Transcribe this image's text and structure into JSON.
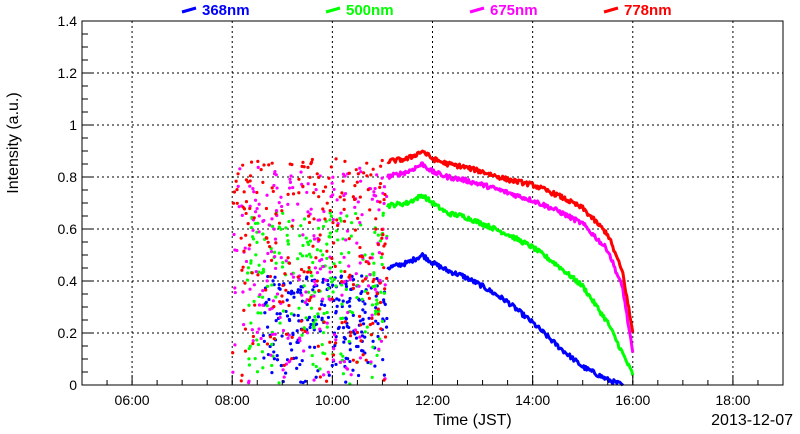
{
  "chart_data": {
    "type": "scatter",
    "title": "",
    "xlabel": "Time (JST)",
    "ylabel": "Intensity (a.u.)",
    "date_label": "2013-12-07",
    "x_unit": "hour",
    "xlim": [
      5.0,
      19.0
    ],
    "ylim": [
      0,
      1.4
    ],
    "x_ticks": [
      6,
      8,
      10,
      12,
      14,
      16,
      18
    ],
    "x_tick_labels": [
      "06:00",
      "08:00",
      "10:00",
      "12:00",
      "14:00",
      "16:00",
      "18:00"
    ],
    "y_ticks": [
      0,
      0.2,
      0.4,
      0.6,
      0.8,
      1.0,
      1.2,
      1.4
    ],
    "y_tick_labels": [
      "0",
      "0.2",
      "0.4",
      "0.6",
      "0.8",
      "1",
      "1.2",
      "1.4"
    ],
    "grid": true,
    "legend_position": "top",
    "series": [
      {
        "name": "368nm",
        "color": "#0000ff",
        "scatter_range": [
          8.6,
          11.1
        ],
        "scatter_max": 0.42,
        "line": [
          [
            11.1,
            0.45
          ],
          [
            11.5,
            0.47
          ],
          [
            11.8,
            0.5
          ],
          [
            12.0,
            0.47
          ],
          [
            12.3,
            0.44
          ],
          [
            12.6,
            0.42
          ],
          [
            13.0,
            0.38
          ],
          [
            13.5,
            0.32
          ],
          [
            14.0,
            0.24
          ],
          [
            14.5,
            0.15
          ],
          [
            15.0,
            0.07
          ],
          [
            15.5,
            0.02
          ],
          [
            15.8,
            0.0
          ]
        ]
      },
      {
        "name": "500nm",
        "color": "#00ff00",
        "scatter_range": [
          8.3,
          11.1
        ],
        "scatter_max": 0.68,
        "line": [
          [
            11.1,
            0.69
          ],
          [
            11.5,
            0.7
          ],
          [
            11.8,
            0.73
          ],
          [
            12.0,
            0.7
          ],
          [
            12.3,
            0.66
          ],
          [
            12.6,
            0.65
          ],
          [
            13.0,
            0.62
          ],
          [
            13.5,
            0.58
          ],
          [
            14.0,
            0.53
          ],
          [
            14.5,
            0.46
          ],
          [
            15.0,
            0.38
          ],
          [
            15.5,
            0.24
          ],
          [
            15.8,
            0.12
          ],
          [
            16.0,
            0.04
          ]
        ]
      },
      {
        "name": "675nm",
        "color": "#ff00ff",
        "scatter_range": [
          8.0,
          11.1
        ],
        "scatter_max": 0.84,
        "line": [
          [
            11.1,
            0.8
          ],
          [
            11.5,
            0.82
          ],
          [
            11.8,
            0.85
          ],
          [
            12.0,
            0.82
          ],
          [
            12.3,
            0.8
          ],
          [
            12.6,
            0.79
          ],
          [
            13.0,
            0.77
          ],
          [
            13.5,
            0.74
          ],
          [
            14.0,
            0.71
          ],
          [
            14.5,
            0.67
          ],
          [
            15.0,
            0.62
          ],
          [
            15.5,
            0.52
          ],
          [
            15.8,
            0.37
          ],
          [
            16.0,
            0.12
          ]
        ]
      },
      {
        "name": "778nm",
        "color": "#ff0000",
        "scatter_range": [
          8.0,
          11.1
        ],
        "scatter_max": 0.87,
        "line": [
          [
            11.1,
            0.86
          ],
          [
            11.5,
            0.87
          ],
          [
            11.8,
            0.9
          ],
          [
            12.0,
            0.87
          ],
          [
            12.3,
            0.85
          ],
          [
            12.6,
            0.84
          ],
          [
            13.0,
            0.82
          ],
          [
            13.5,
            0.79
          ],
          [
            14.0,
            0.77
          ],
          [
            14.5,
            0.73
          ],
          [
            15.0,
            0.68
          ],
          [
            15.5,
            0.58
          ],
          [
            15.8,
            0.43
          ],
          [
            16.0,
            0.2
          ]
        ]
      }
    ]
  }
}
